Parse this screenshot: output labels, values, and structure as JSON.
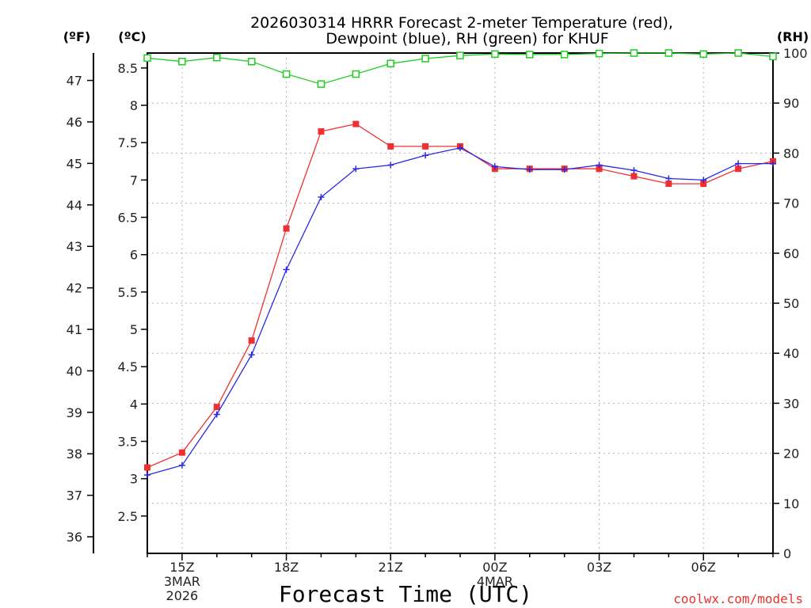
{
  "chart_data": {
    "type": "line",
    "title_lines": [
      "2026030314 HRRR Forecast 2-meter Temperature (red),",
      "Dewpoint (blue), RH (green) for KHUF"
    ],
    "xlabel": "Forecast Time (UTC)",
    "credit": "coolwx.com/models",
    "units": {
      "fahrenheit": "(ºF)",
      "celsius": "(ºC)",
      "rh": "(RH)"
    },
    "x_range": [
      14,
      32
    ],
    "x_ticks": [
      {
        "x": 15,
        "lines": [
          "15Z",
          "3MAR",
          "2026"
        ]
      },
      {
        "x": 18,
        "lines": [
          "18Z"
        ]
      },
      {
        "x": 21,
        "lines": [
          "21Z"
        ]
      },
      {
        "x": 24,
        "lines": [
          "00Z",
          "4MAR"
        ]
      },
      {
        "x": 27,
        "lines": [
          "03Z"
        ]
      },
      {
        "x": 30,
        "lines": [
          "06Z"
        ]
      }
    ],
    "y_celsius_range": [
      2.0,
      8.7
    ],
    "y_celsius_ticks": [
      "2.5",
      "3",
      "3.5",
      "4",
      "4.5",
      "5",
      "5.5",
      "6",
      "6.5",
      "7",
      "7.5",
      "8",
      "8.5"
    ],
    "y_fahrenheit_ticks": [
      "36",
      "37",
      "38",
      "39",
      "40",
      "41",
      "42",
      "43",
      "44",
      "45",
      "46",
      "47"
    ],
    "y_rh_range": [
      0,
      100
    ],
    "y_rh_ticks": [
      "0",
      "10",
      "20",
      "30",
      "40",
      "50",
      "60",
      "70",
      "80",
      "90",
      "100"
    ],
    "x": [
      14,
      15,
      16,
      17,
      18,
      19,
      20,
      21,
      22,
      23,
      24,
      25,
      26,
      27,
      28,
      29,
      30,
      31,
      32
    ],
    "series": [
      {
        "name": "Temperature",
        "axis": "celsius",
        "color": "#f03030",
        "marker": "filled-square",
        "values": [
          3.15,
          3.35,
          3.96,
          4.85,
          6.35,
          7.65,
          7.75,
          7.45,
          7.45,
          7.45,
          7.15,
          7.15,
          7.15,
          7.15,
          7.05,
          6.95,
          6.95,
          7.15,
          7.25
        ]
      },
      {
        "name": "Dewpoint",
        "axis": "celsius",
        "color": "#2828e6",
        "marker": "plus",
        "values": [
          3.05,
          3.18,
          3.86,
          4.66,
          5.8,
          6.77,
          7.15,
          7.2,
          7.33,
          7.43,
          7.18,
          7.14,
          7.14,
          7.2,
          7.13,
          7.02,
          7.0,
          7.22,
          7.22
        ]
      },
      {
        "name": "RH",
        "axis": "rh",
        "color": "#22cc22",
        "marker": "open-square",
        "values": [
          99,
          98.3,
          99.1,
          98.3,
          95.8,
          93.8,
          95.8,
          97.9,
          98.9,
          99.5,
          99.8,
          99.7,
          99.7,
          99.9,
          100,
          100,
          99.8,
          100,
          99.3
        ]
      }
    ]
  }
}
